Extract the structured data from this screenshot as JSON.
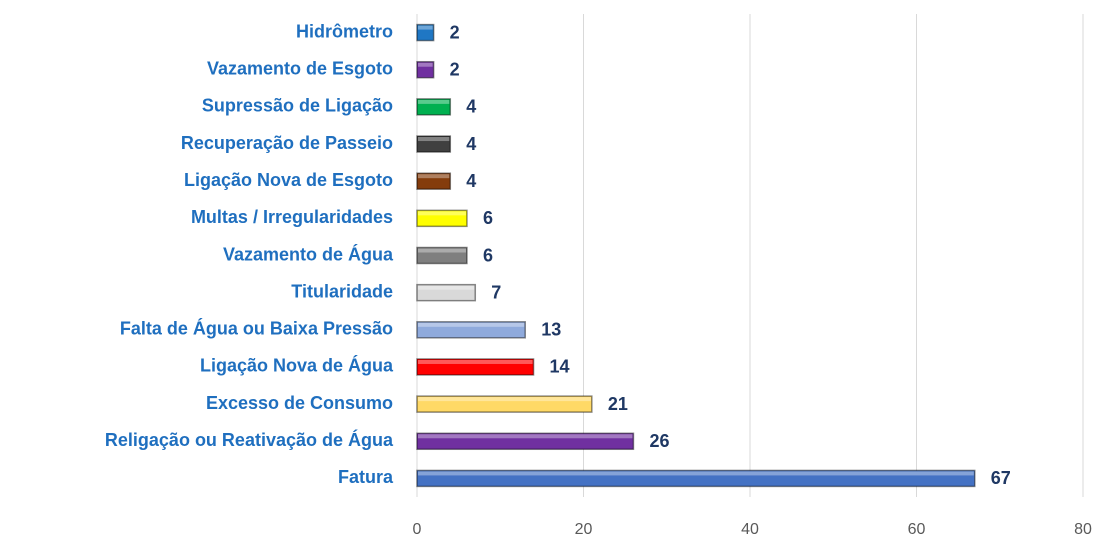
{
  "chart_data": {
    "type": "barh",
    "categories": [
      "Hidrômetro",
      "Vazamento de Esgoto",
      "Supressão de Ligação",
      "Recuperação de Passeio",
      "Ligação Nova de Esgoto",
      "Multas / Irregularidades",
      "Vazamento de Água",
      "Titularidade",
      "Falta de Água ou Baixa Pressão",
      "Ligação Nova de Água",
      "Excesso de Consumo",
      "Religação ou Reativação de Água",
      "Fatura"
    ],
    "values": [
      2,
      2,
      4,
      4,
      4,
      6,
      6,
      7,
      13,
      14,
      21,
      26,
      67
    ],
    "colors": [
      "#1f77c4",
      "#7030a0",
      "#00b050",
      "#404040",
      "#843c0c",
      "#ffff00",
      "#7f7f7f",
      "#d9d9d9",
      "#8faadc",
      "#ff0000",
      "#ffd966",
      "#7030a0",
      "#4472c4"
    ],
    "xlim": [
      0,
      80
    ],
    "xticks": [
      0,
      20,
      40,
      60,
      80
    ],
    "grid": true
  }
}
